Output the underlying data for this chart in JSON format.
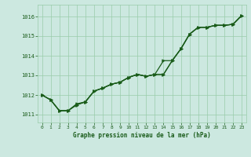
{
  "title": "Graphe pression niveau de la mer (hPa)",
  "bg_color": "#cce8e0",
  "line_color": "#1a5c1a",
  "grid_color": "#99ccaa",
  "text_color": "#1a5c1a",
  "xlim": [
    -0.5,
    23.5
  ],
  "ylim": [
    1010.6,
    1016.6
  ],
  "yticks": [
    1011,
    1012,
    1013,
    1014,
    1015,
    1016
  ],
  "xticks": [
    0,
    1,
    2,
    3,
    4,
    5,
    6,
    7,
    8,
    9,
    10,
    11,
    12,
    13,
    14,
    15,
    16,
    17,
    18,
    19,
    20,
    21,
    22,
    23
  ],
  "series1_x": [
    0,
    1,
    2,
    3,
    4,
    5,
    6,
    7,
    8,
    9,
    10,
    11,
    12,
    13,
    14,
    15,
    16,
    17,
    18,
    19,
    20,
    21,
    22,
    23
  ],
  "series1_y": [
    1012.0,
    1011.75,
    1011.2,
    1011.2,
    1011.5,
    1011.65,
    1012.2,
    1012.35,
    1012.55,
    1012.65,
    1012.9,
    1013.05,
    1012.95,
    1013.05,
    1013.05,
    1013.75,
    1014.35,
    1015.1,
    1015.45,
    1015.45,
    1015.55,
    1015.55,
    1015.6,
    1016.05
  ],
  "series2_x": [
    0,
    1,
    2,
    3,
    4,
    5,
    6,
    7,
    8,
    9,
    10,
    11,
    12,
    13,
    14,
    15,
    16,
    17,
    18,
    19,
    20,
    21,
    22,
    23
  ],
  "series2_y": [
    1012.0,
    1011.75,
    1011.2,
    1011.2,
    1011.5,
    1011.65,
    1012.2,
    1012.35,
    1012.55,
    1012.65,
    1012.9,
    1013.05,
    1012.95,
    1013.05,
    1013.05,
    1013.75,
    1014.35,
    1015.1,
    1015.45,
    1015.45,
    1015.55,
    1015.55,
    1015.6,
    1016.05
  ],
  "series3_x": [
    0,
    1,
    2,
    3,
    4,
    5,
    6,
    7,
    8,
    9,
    10,
    11,
    12,
    13,
    14,
    15,
    16,
    17,
    18,
    19,
    20,
    21,
    22,
    23
  ],
  "series3_y": [
    1012.0,
    1011.75,
    1011.2,
    1011.2,
    1011.55,
    1011.65,
    1012.2,
    1012.35,
    1012.55,
    1012.65,
    1012.9,
    1013.05,
    1012.95,
    1013.05,
    1013.75,
    1013.75,
    1014.35,
    1015.1,
    1015.45,
    1015.45,
    1015.55,
    1015.55,
    1015.6,
    1016.05
  ]
}
